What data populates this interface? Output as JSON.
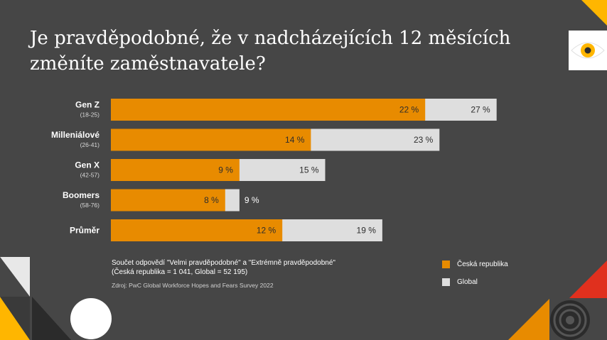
{
  "title": "Je pravděpodobné, že v nadcházejících 12 měsících změníte zaměstnavatele?",
  "note": {
    "line1": "Součet odpovědí \"Velmi pravděpodobné\" a \"Extrémně pravděpodobné\"",
    "line2": "(Česká republika = 1 041, Global = 52 195)",
    "source": "Zdroj: PwC Global Workforce Hopes and Fears Survey 2022"
  },
  "colors": {
    "cz": "#e88b00",
    "global": "#dedede",
    "background": "#464646",
    "yellow": "#ffb600",
    "red": "#e0301e"
  },
  "chart_data": {
    "type": "bar",
    "orientation": "horizontal",
    "stacked": "overlay",
    "categories": [
      {
        "name": "Gen Z",
        "sub": "(18-25)"
      },
      {
        "name": "Milleniálové",
        "sub": "(26-41)"
      },
      {
        "name": "Gen X",
        "sub": "(42-57)"
      },
      {
        "name": "Boomers",
        "sub": "(58-76)"
      },
      {
        "name": "Průměr",
        "sub": ""
      }
    ],
    "series": [
      {
        "name": "Česká republika",
        "values": [
          22,
          14,
          9,
          8,
          12
        ],
        "labels": [
          "22 %",
          "14 %",
          "9 %",
          "8 %",
          "12 %"
        ],
        "color": "#e88b00"
      },
      {
        "name": "Global",
        "values": [
          27,
          23,
          15,
          9,
          19
        ],
        "labels": [
          "27 %",
          "23 %",
          "15 %",
          "9 %",
          "19 %"
        ],
        "color": "#dedede"
      }
    ],
    "xlim": [
      0,
      27
    ]
  }
}
